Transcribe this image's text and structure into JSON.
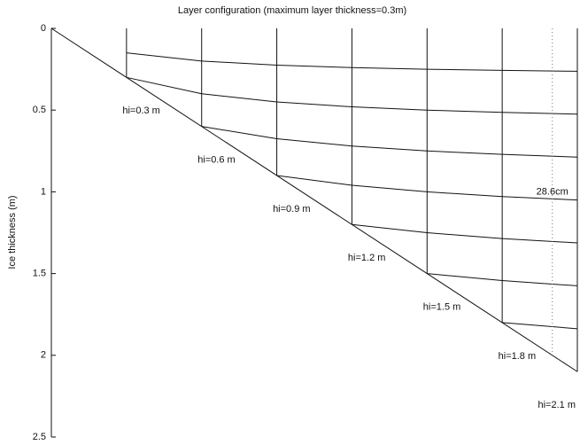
{
  "chart_data": {
    "type": "layers",
    "title": "Layer configuration (maximum layer thickness=0.3m)",
    "ylabel": "Ice thickness (m)",
    "xlim": [
      0,
      2.1
    ],
    "ylim": [
      0,
      2.5
    ],
    "yticks": [
      0,
      0.5,
      1,
      1.5,
      2,
      2.5
    ],
    "columns": [
      {
        "thickness": 0.3,
        "label": "hi=0.3 m",
        "interfaces": [
          0.15
        ]
      },
      {
        "thickness": 0.6,
        "label": "hi=0.6 m",
        "interfaces": [
          0.2,
          0.4
        ]
      },
      {
        "thickness": 0.9,
        "label": "hi=0.9 m",
        "interfaces": [
          0.225,
          0.45,
          0.675
        ]
      },
      {
        "thickness": 1.2,
        "label": "hi=1.2 m",
        "interfaces": [
          0.24,
          0.48,
          0.72,
          0.96
        ]
      },
      {
        "thickness": 1.5,
        "label": "hi=1.5 m",
        "interfaces": [
          0.25,
          0.5,
          0.75,
          1.0,
          1.25
        ]
      },
      {
        "thickness": 1.8,
        "label": "hi=1.8 m",
        "interfaces": [
          0.257,
          0.514,
          0.771,
          1.029,
          1.286,
          1.543
        ]
      },
      {
        "thickness": 2.1,
        "label": "hi=2.1 m",
        "interfaces": [
          0.2625,
          0.525,
          0.7875,
          1.05,
          1.3125,
          1.575,
          1.8375
        ]
      }
    ],
    "reference_x": 2.0,
    "annotation": {
      "text": "28.6cm",
      "x": 2.0,
      "y": 1.0
    }
  }
}
